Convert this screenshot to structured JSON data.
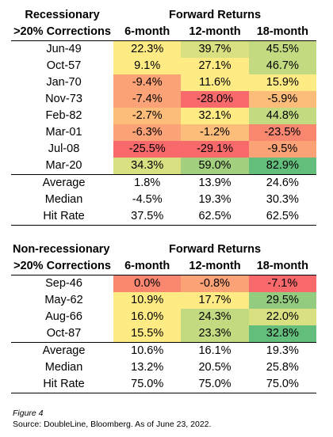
{
  "colors": {
    "red": "#F8696B",
    "orange_red": "#F98770",
    "orange": "#FBA276",
    "light_orange": "#FCBD7B",
    "yellow": "#FFEB84",
    "yellow_green": "#D8E081",
    "light_green": "#C4DA80",
    "green": "#A2D07F",
    "mid_green": "#93CC7E",
    "dark_green": "#63BE7B"
  },
  "recessionary": {
    "header_left_1": "Recessionary",
    "header_left_2": ">20% Corrections",
    "header_group": "Forward Returns",
    "columns": [
      "6-month",
      "12-month",
      "18-month"
    ],
    "rows": [
      {
        "label": "Jun-49",
        "values": [
          "22.3%",
          "39.7%",
          "45.5%"
        ],
        "colors": [
          "#FFEB84",
          "#D8E081",
          "#C4DA80"
        ]
      },
      {
        "label": "Oct-57",
        "values": [
          "9.1%",
          "27.1%",
          "46.7%"
        ],
        "colors": [
          "#FFEB84",
          "#FFEB84",
          "#C4DA80"
        ]
      },
      {
        "label": "Jan-70",
        "values": [
          "-9.4%",
          "11.6%",
          "15.9%"
        ],
        "colors": [
          "#FBA276",
          "#FFEB84",
          "#FFEB84"
        ]
      },
      {
        "label": "Nov-73",
        "values": [
          "-7.4%",
          "-28.0%",
          "-5.9%"
        ],
        "colors": [
          "#FBA276",
          "#F8696B",
          "#FCBD7B"
        ]
      },
      {
        "label": "Feb-82",
        "values": [
          "-2.7%",
          "32.1%",
          "44.8%"
        ],
        "colors": [
          "#FCBD7B",
          "#FFEB84",
          "#C4DA80"
        ]
      },
      {
        "label": "Mar-01",
        "values": [
          "-6.3%",
          "-1.2%",
          "-23.5%"
        ],
        "colors": [
          "#FBA276",
          "#FCBD7B",
          "#F98770"
        ]
      },
      {
        "label": "Jul-08",
        "values": [
          "-25.5%",
          "-29.1%",
          "-9.5%"
        ],
        "colors": [
          "#F8696B",
          "#F8696B",
          "#FBA276"
        ]
      },
      {
        "label": "Mar-20",
        "values": [
          "34.3%",
          "59.0%",
          "82.9%"
        ],
        "colors": [
          "#D8E081",
          "#A2D07F",
          "#63BE7B"
        ]
      }
    ],
    "summary": [
      {
        "label": "Average",
        "values": [
          "1.8%",
          "13.9%",
          "24.6%"
        ]
      },
      {
        "label": "Median",
        "values": [
          "-4.5%",
          "19.3%",
          "30.3%"
        ]
      },
      {
        "label": "Hit Rate",
        "values": [
          "37.5%",
          "62.5%",
          "62.5%"
        ]
      }
    ]
  },
  "non_recessionary": {
    "header_left_1": "Non-recessionary",
    "header_left_2": ">20% Corrections",
    "header_group": "Forward Returns",
    "columns": [
      "6-month",
      "12-month",
      "18-month"
    ],
    "rows": [
      {
        "label": "Sep-46",
        "values": [
          "0.0%",
          "-0.8%",
          "-7.1%"
        ],
        "colors": [
          "#F98770",
          "#FBA276",
          "#F8696B"
        ]
      },
      {
        "label": "May-62",
        "values": [
          "10.9%",
          "17.7%",
          "29.5%"
        ],
        "colors": [
          "#FFEB84",
          "#FFEB84",
          "#93CC7E"
        ]
      },
      {
        "label": "Aug-66",
        "values": [
          "16.0%",
          "24.3%",
          "22.0%"
        ],
        "colors": [
          "#FFEB84",
          "#C4DA80",
          "#D8E081"
        ]
      },
      {
        "label": "Oct-87",
        "values": [
          "15.5%",
          "23.3%",
          "32.8%"
        ],
        "colors": [
          "#FFEB84",
          "#C4DA80",
          "#63BE7B"
        ]
      }
    ],
    "summary": [
      {
        "label": "Average",
        "values": [
          "10.6%",
          "16.1%",
          "19.3%"
        ]
      },
      {
        "label": "Median",
        "values": [
          "13.2%",
          "20.5%",
          "25.8%"
        ]
      },
      {
        "label": "Hit Rate",
        "values": [
          "75.0%",
          "75.0%",
          "75.0%"
        ]
      }
    ]
  },
  "caption": {
    "figure": "Figure 4",
    "source": "Source: DoubleLine, Bloomberg. As of June 23, 2022."
  }
}
